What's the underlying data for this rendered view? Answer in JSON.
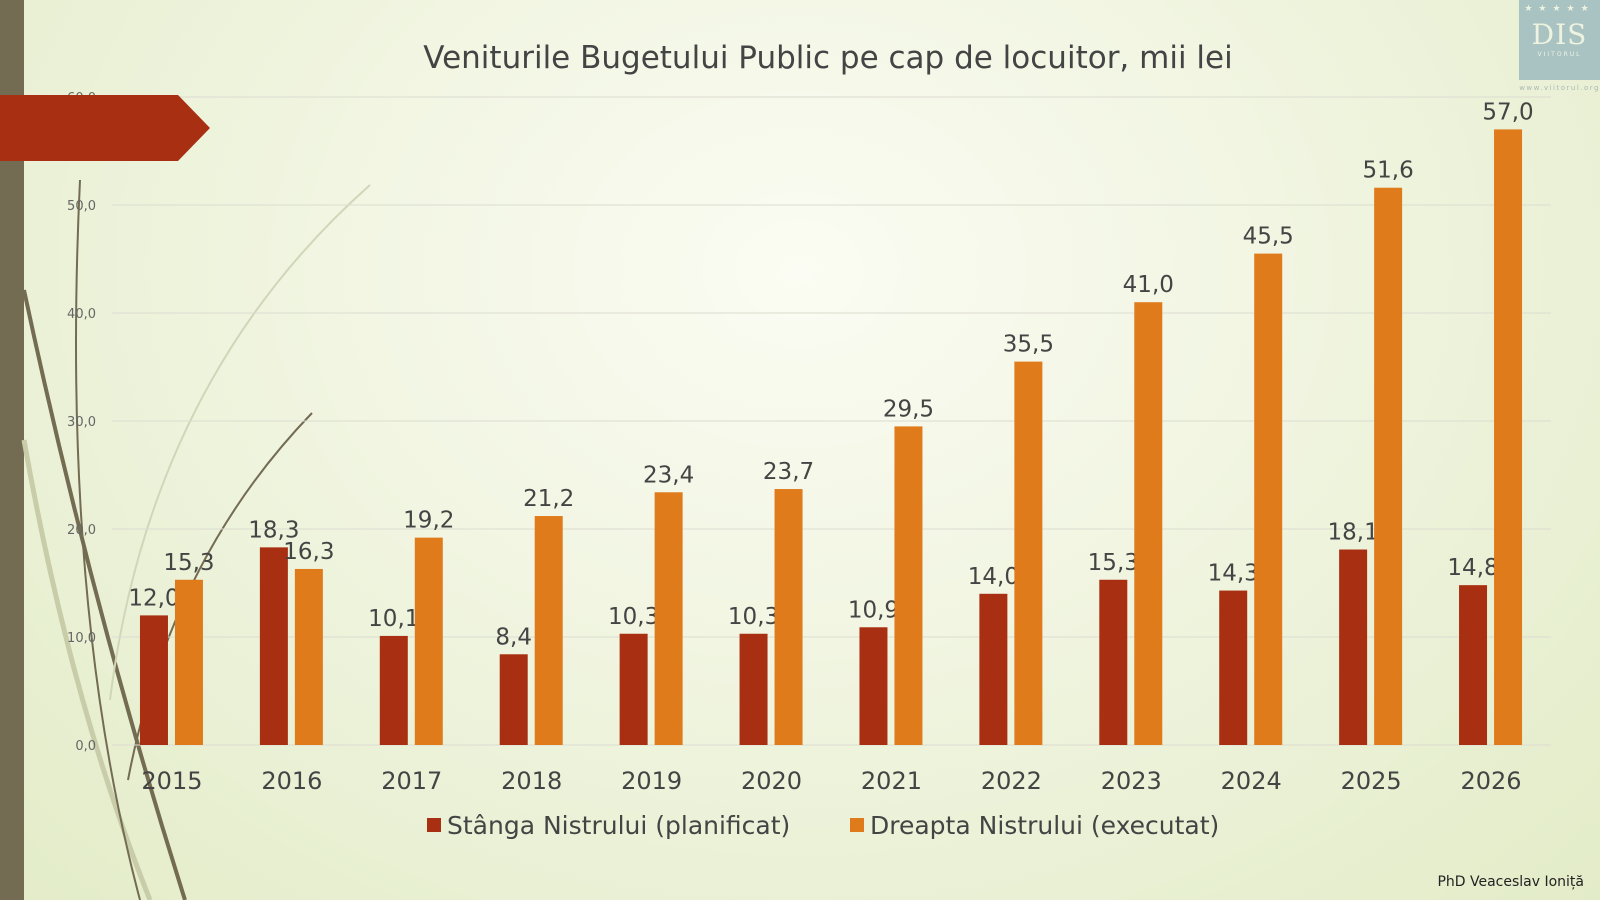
{
  "chart_data": {
    "type": "bar",
    "title": "Veniturile Bugetului Public pe cap de locuitor, mii lei",
    "categories": [
      "2015",
      "2016",
      "2017",
      "2018",
      "2019",
      "2020",
      "2021",
      "2022",
      "2023",
      "2024",
      "2025",
      "2026"
    ],
    "series": [
      {
        "name": "Stânga Nistrului (planificat)",
        "color": "#a82f11",
        "values": [
          12.0,
          18.3,
          10.1,
          8.4,
          10.3,
          10.3,
          10.9,
          14.0,
          15.3,
          14.3,
          18.1,
          14.8
        ],
        "labels": [
          "12,0",
          "18,3",
          "10,1",
          "8,4",
          "10,3",
          "10,3",
          "10,9",
          "14,0",
          "15,3",
          "14,3",
          "18,1",
          "14,8"
        ]
      },
      {
        "name": "Dreapta Nistrului (executat)",
        "color": "#e07b1c",
        "values": [
          15.3,
          16.3,
          19.2,
          21.2,
          23.4,
          23.7,
          29.5,
          35.5,
          41.0,
          45.5,
          51.6,
          57.0
        ],
        "labels": [
          "15,3",
          "16,3",
          "19,2",
          "21,2",
          "23,4",
          "23,7",
          "29,5",
          "35,5",
          "41,0",
          "45,5",
          "51,6",
          "57,0"
        ]
      }
    ],
    "ylim": [
      0,
      60
    ],
    "yticks": [
      "0,0",
      "10,0",
      "20,0",
      "30,0",
      "40,0",
      "50,0",
      "60,0"
    ],
    "grid": true,
    "legend": "bottom",
    "xlabel": "",
    "ylabel": ""
  },
  "logo": {
    "text": "DIS",
    "subtext": "VIITORUL",
    "url": "www.viitorul.org"
  },
  "credit": "PhD Veaceslav Ioniță"
}
